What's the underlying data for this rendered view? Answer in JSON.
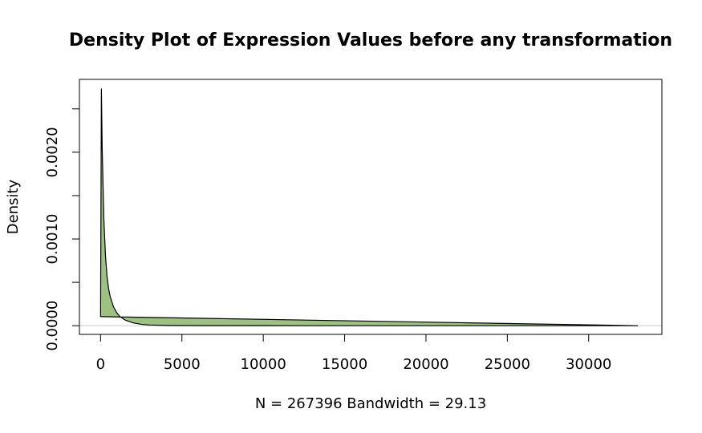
{
  "chart_data": {
    "type": "area",
    "title": "Density Plot of Expression Values before any transformation",
    "xlabel": "N = 267396   Bandwidth = 29.13",
    "ylabel": "Density",
    "xlim": [
      -1300,
      34500
    ],
    "ylim": [
      -0.0001,
      0.00284
    ],
    "x_ticks": [
      0,
      5000,
      10000,
      15000,
      20000,
      25000,
      30000
    ],
    "x_tick_labels": [
      "0",
      "5000",
      "10000",
      "15000",
      "20000",
      "25000",
      "30000"
    ],
    "y_ticks": [
      0.0,
      0.0005,
      0.001,
      0.0015,
      0.002,
      0.0025
    ],
    "y_tick_labels": [
      "0.0000",
      "",
      "0.0010",
      "",
      "0.0020",
      ""
    ],
    "fill_color": "#9dc183",
    "line_color": "#000000",
    "grid": false,
    "baseline_y": 0,
    "series": [
      {
        "x": [
          0,
          50,
          100,
          200,
          300,
          400,
          500,
          600,
          800,
          1000,
          1200,
          1500,
          2000,
          2500,
          3000,
          4000,
          5000,
          7000,
          10000,
          15000,
          20000,
          25000,
          30000,
          33000
        ],
        "y": [
          0.000105,
          0.00273,
          0.00204,
          0.00124,
          0.00081,
          0.00056,
          0.00042,
          0.00033,
          0.000215,
          0.000148,
          0.000103,
          6.6e-05,
          3.2e-05,
          1.6e-05,
          8e-06,
          3e-06,
          1.5e-06,
          5e-07,
          2e-07,
          1e-07,
          5e-08,
          2e-08,
          1e-08,
          0.0
        ]
      },
      {
        "x": [
          0,
          33000
        ],
        "y": [
          0.000105,
          0.0
        ]
      }
    ]
  }
}
